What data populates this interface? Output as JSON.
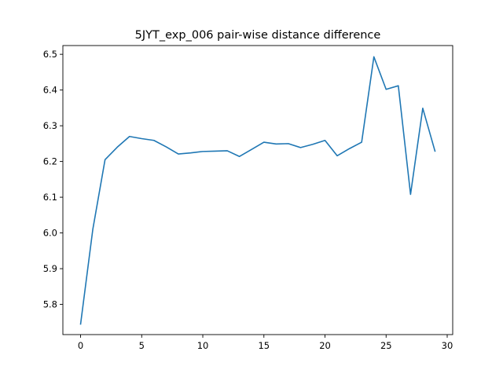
{
  "chart_data": {
    "type": "line",
    "title": "5JYT_exp_006 pair-wise distance difference",
    "xlabel": "",
    "ylabel": "",
    "xlim": [
      -1.45,
      30.45
    ],
    "ylim": [
      5.7155,
      6.5245
    ],
    "xticks": [
      0,
      5,
      10,
      15,
      20,
      25,
      30
    ],
    "yticks": [
      5.8,
      5.9,
      6.0,
      6.1,
      6.2,
      6.3,
      6.4,
      6.5
    ],
    "ytick_labels": [
      "5.8",
      "5.9",
      "6.0",
      "6.1",
      "6.2",
      "6.3",
      "6.4",
      "6.5"
    ],
    "grid": false,
    "line_color": "#1f77b4",
    "series": [
      {
        "x": [
          0,
          1,
          2,
          3,
          4,
          5,
          6,
          7,
          8,
          9,
          10,
          11,
          12,
          13,
          14,
          15,
          16,
          17,
          18,
          19,
          20,
          21,
          22,
          23,
          24,
          25,
          26,
          27,
          28,
          29
        ],
        "values": [
          5.745,
          6.01,
          6.205,
          6.24,
          6.27,
          6.264,
          6.259,
          6.241,
          6.221,
          6.224,
          6.228,
          6.229,
          6.23,
          6.214,
          6.234,
          6.254,
          6.249,
          6.25,
          6.239,
          6.248,
          6.259,
          6.216,
          6.236,
          6.254,
          6.493,
          6.402,
          6.412,
          6.108,
          6.349,
          6.229
        ]
      }
    ]
  }
}
